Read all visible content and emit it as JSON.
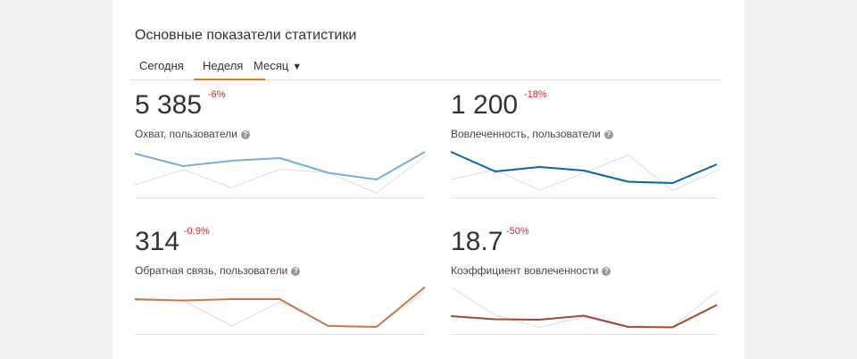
{
  "header": {
    "title": "Основные показатели статистики"
  },
  "tabs": [
    {
      "label": "Сегодня"
    },
    {
      "label": "Неделя",
      "active": true
    },
    {
      "label": "Месяц",
      "dropdown_icon": "triangle-down"
    }
  ],
  "colors": {
    "accent": "#e07b21",
    "negative": "#e0201b",
    "comparison_line": "#dcdcdc",
    "baseline": "#dddddd"
  },
  "metrics": [
    {
      "value": "5 385",
      "delta": "-6%",
      "label": "Охват, пользователи",
      "color": "#7aaed3",
      "current": [
        0.88,
        0.6,
        0.72,
        0.78,
        0.45,
        0.3,
        0.92
      ],
      "previous": [
        0.18,
        0.52,
        0.12,
        0.53,
        0.45,
        0.0,
        0.82
      ]
    },
    {
      "value": "1 200",
      "delta": "-18%",
      "label": "Вовлеченность, пользователи",
      "color": "#0b63a5",
      "current": [
        0.92,
        0.48,
        0.58,
        0.5,
        0.25,
        0.22,
        0.64
      ],
      "previous": [
        0.3,
        0.52,
        0.06,
        0.44,
        0.85,
        0.05,
        0.5
      ]
    },
    {
      "value": "314",
      "delta": "-0.9%",
      "label": "Обратная связь, пользователи",
      "color": "#c8784e",
      "current": [
        0.68,
        0.65,
        0.68,
        0.68,
        0.08,
        0.06,
        0.95
      ],
      "previous": [
        0.65,
        0.65,
        0.08,
        0.62,
        0.1,
        0.06,
        0.85
      ]
    },
    {
      "value": "18.7",
      "delta": "-50%",
      "label": "Коэффициент вовлеченности",
      "color": "#a5472e",
      "current": [
        0.3,
        0.23,
        0.22,
        0.31,
        0.06,
        0.05,
        0.55
      ],
      "previous": [
        0.95,
        0.32,
        0.05,
        0.28,
        0.05,
        0.06,
        0.85
      ]
    }
  ]
}
